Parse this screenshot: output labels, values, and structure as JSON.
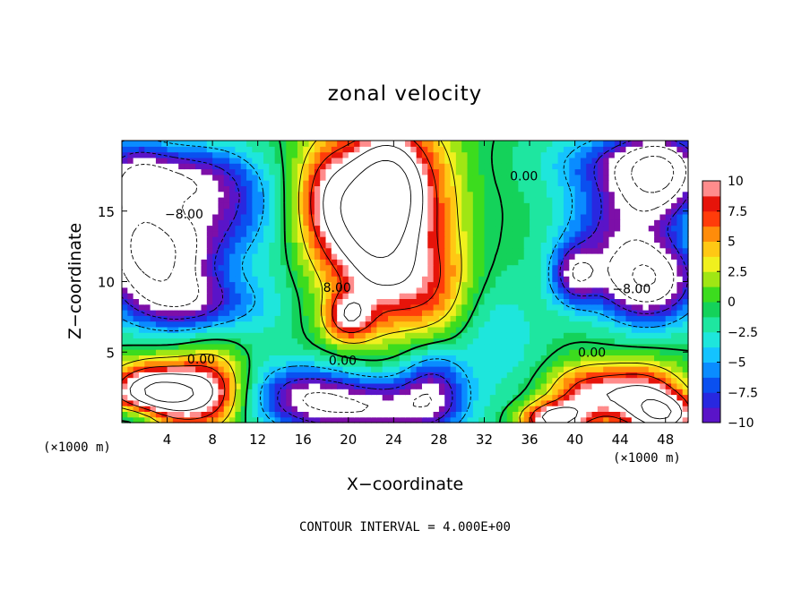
{
  "chart_data": {
    "type": "heatmap",
    "title": "zonal velocity",
    "xlabel": "X−coordinate",
    "ylabel": "Z−coordinate",
    "x_unit_left": "(×1000 m)",
    "x_unit_right": "(×1000 m)",
    "footer": "CONTOUR INTERVAL = 4.000E+00",
    "xlim": [
      0,
      50
    ],
    "ylim": [
      0,
      20
    ],
    "x_ticks": [
      "4",
      "8",
      "12",
      "16",
      "20",
      "24",
      "28",
      "32",
      "36",
      "40",
      "44",
      "48"
    ],
    "x_tick_values": [
      4,
      8,
      12,
      16,
      20,
      24,
      28,
      32,
      36,
      40,
      44,
      48
    ],
    "y_ticks": [
      "5",
      "10",
      "15"
    ],
    "y_tick_values": [
      5,
      10,
      15
    ],
    "colorbar": {
      "range": [
        -10,
        10
      ],
      "ticks": [
        "10",
        "7.5",
        "5",
        "2.5",
        "0",
        "−2.5",
        "−5",
        "−7.5",
        "−10"
      ],
      "tick_values": [
        10,
        7.5,
        5,
        2.5,
        0,
        -2.5,
        -5,
        -7.5,
        -10
      ]
    },
    "contour_labels": [
      {
        "text": "0.00",
        "x": 35.5,
        "y": 17.5
      },
      {
        "text": "−8.00",
        "x": 5.5,
        "y": 14.8
      },
      {
        "text": "8.00",
        "x": 19.0,
        "y": 9.6
      },
      {
        "text": "−8.00",
        "x": 45.0,
        "y": 9.5
      },
      {
        "text": "0.00",
        "x": 7.0,
        "y": 4.5
      },
      {
        "text": "0.00",
        "x": 19.5,
        "y": 4.4
      },
      {
        "text": "0.00",
        "x": 41.5,
        "y": 5.0
      }
    ],
    "features": [
      {
        "x": 22,
        "y": 14,
        "v": 14,
        "sx": 3.0,
        "sy": 4.0
      },
      {
        "x": 24,
        "y": 17,
        "v": 11,
        "sx": 2.5,
        "sy": 3.0
      },
      {
        "x": 20,
        "y": 7.5,
        "v": 9,
        "sx": 1.5,
        "sy": 1.2
      },
      {
        "x": 26,
        "y": 9.5,
        "v": 6,
        "sx": 3.0,
        "sy": 2.5
      },
      {
        "x": 18,
        "y": 16,
        "v": 7,
        "sx": 2.0,
        "sy": 3.0
      },
      {
        "x": 28.5,
        "y": 14,
        "v": 3,
        "sx": 2.0,
        "sy": 6.0
      },
      {
        "x": 3.0,
        "y": 12,
        "v": -16,
        "sx": 3.5,
        "sy": 2.5
      },
      {
        "x": 3.5,
        "y": 17.5,
        "v": -9,
        "sx": 4.0,
        "sy": 1.5
      },
      {
        "x": 6.0,
        "y": 8.5,
        "v": -8,
        "sx": 4.0,
        "sy": 1.5
      },
      {
        "x": 9.0,
        "y": 15.5,
        "v": -7,
        "sx": 3.0,
        "sy": 2.5
      },
      {
        "x": 1.0,
        "y": 16,
        "v": -6,
        "sx": 2.0,
        "sy": 3.0
      },
      {
        "x": 2.0,
        "y": 2.0,
        "v": 12,
        "sx": 2.5,
        "sy": 1.5
      },
      {
        "x": 5.0,
        "y": 2.0,
        "v": 10,
        "sx": 2.5,
        "sy": 1.5
      },
      {
        "x": 8.0,
        "y": 2.5,
        "v": 7,
        "sx": 2.0,
        "sy": 2.0
      },
      {
        "x": 1.5,
        "y": 0.5,
        "v": -7,
        "sx": 2.0,
        "sy": 0.8
      },
      {
        "x": 22,
        "y": 1.0,
        "v": -11,
        "sx": 4.5,
        "sy": 1.5
      },
      {
        "x": 16,
        "y": 2.0,
        "v": -8,
        "sx": 3.0,
        "sy": 1.5
      },
      {
        "x": 27.5,
        "y": 2.5,
        "v": -8,
        "sx": 2.0,
        "sy": 2.0
      },
      {
        "x": 46.5,
        "y": 10,
        "v": -14,
        "sx": 3.0,
        "sy": 2.0
      },
      {
        "x": 47.5,
        "y": 17.5,
        "v": -12,
        "sx": 2.5,
        "sy": 2.0
      },
      {
        "x": 44,
        "y": 14,
        "v": -8,
        "sx": 3.5,
        "sy": 3.0
      },
      {
        "x": 40,
        "y": 10.5,
        "v": -9,
        "sx": 1.5,
        "sy": 1.5
      },
      {
        "x": 45,
        "y": 18.5,
        "v": -6,
        "sx": 5.0,
        "sy": 1.5
      },
      {
        "x": 41,
        "y": 2.0,
        "v": 9,
        "sx": 2.5,
        "sy": 1.5
      },
      {
        "x": 46,
        "y": 2.0,
        "v": 11,
        "sx": 2.5,
        "sy": 1.5
      },
      {
        "x": 38,
        "y": 0.3,
        "v": 12,
        "sx": 2.0,
        "sy": 0.8
      },
      {
        "x": 48,
        "y": 0.5,
        "v": 12,
        "sx": 2.0,
        "sy": 1.0
      },
      {
        "x": 13,
        "y": 8,
        "v": -1,
        "sx": 2.0,
        "sy": 5.0
      },
      {
        "x": 33,
        "y": 6,
        "v": -3,
        "sx": 3.0,
        "sy": 3.0
      }
    ]
  }
}
